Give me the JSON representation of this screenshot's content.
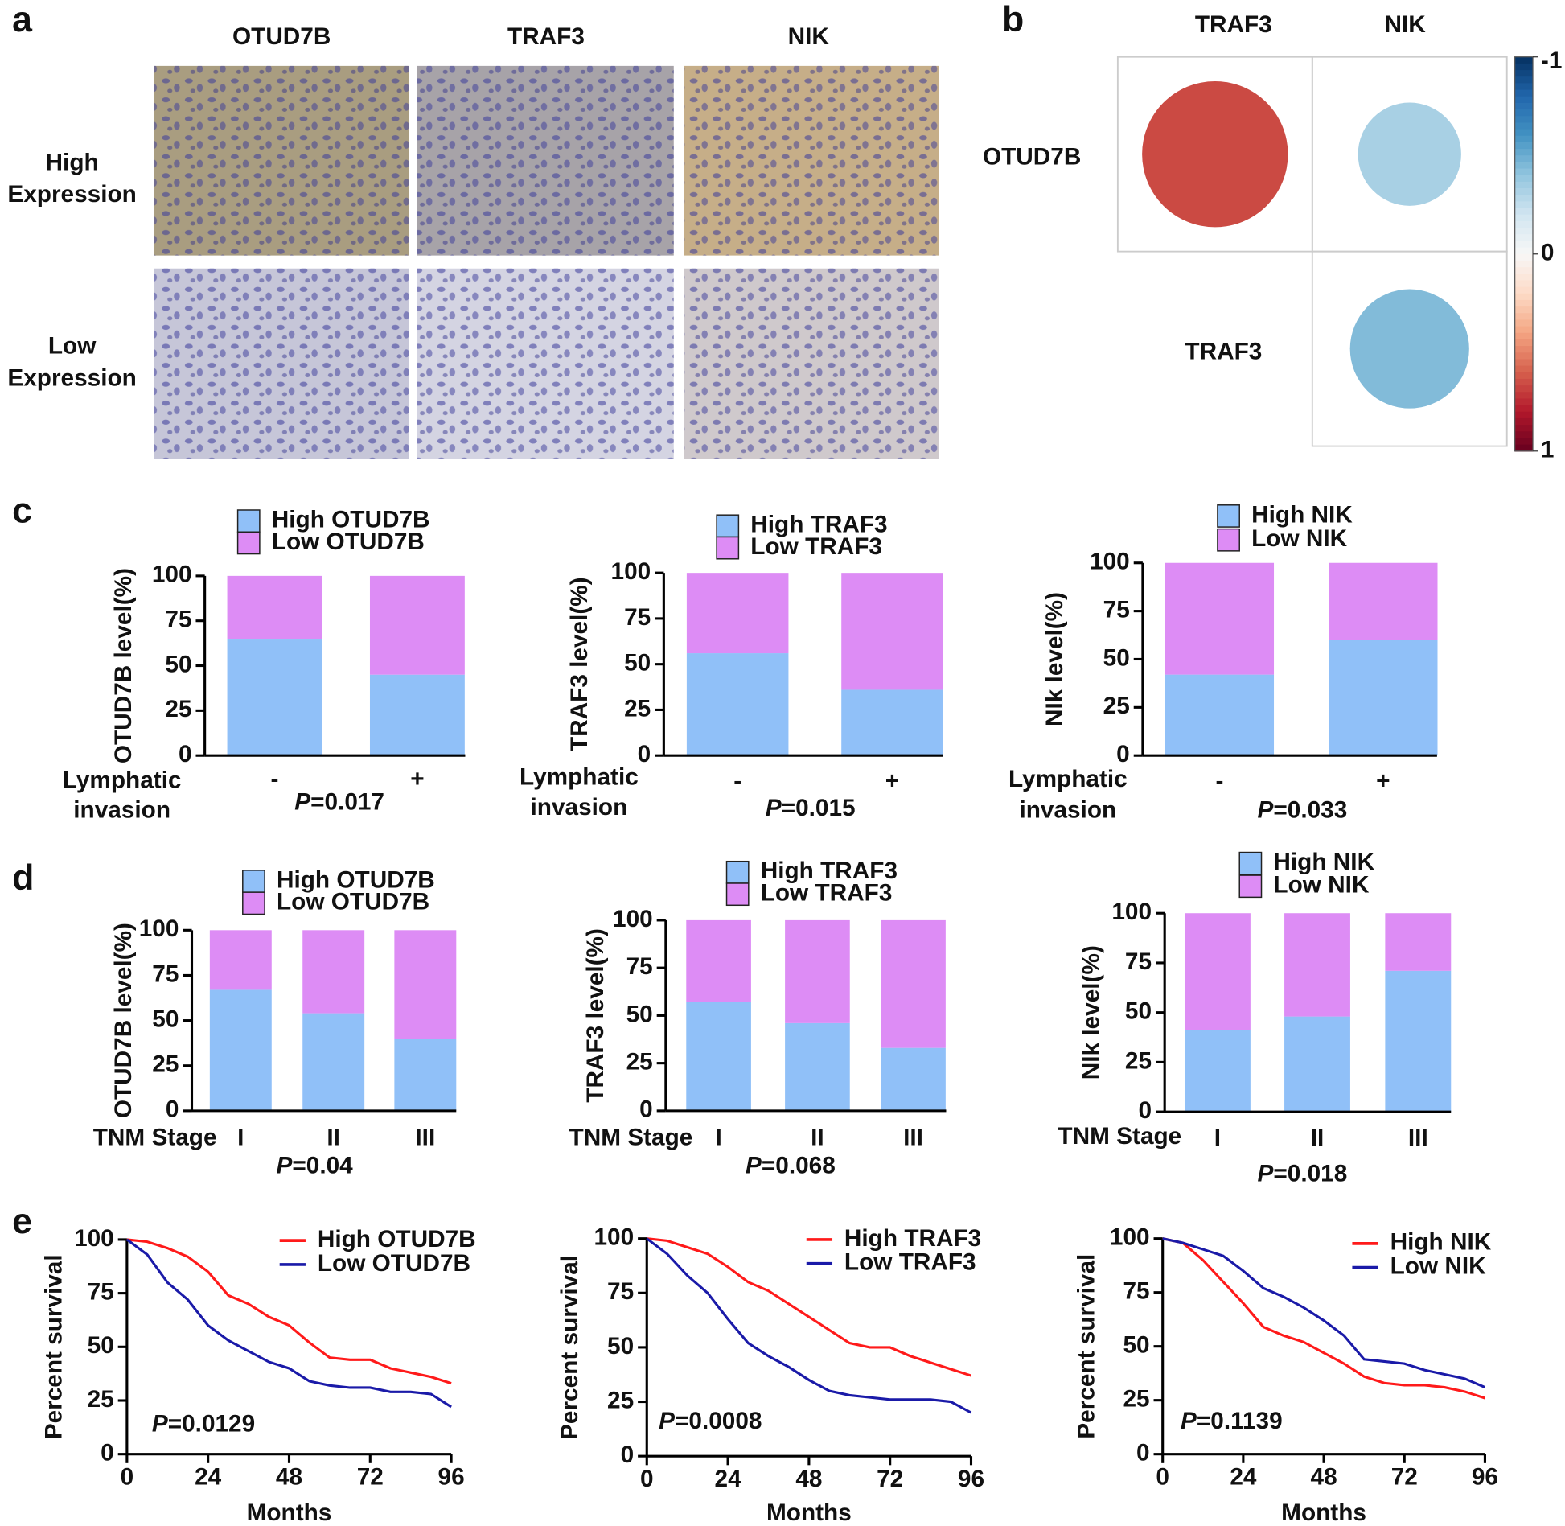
{
  "panel_letters": [
    "a",
    "b",
    "c",
    "d",
    "e"
  ],
  "ihc": {
    "columns": [
      "OTUD7B",
      "TRAF3",
      "NIK"
    ],
    "rows": [
      [
        "High",
        "Expression"
      ],
      [
        "Low",
        "Expression"
      ]
    ]
  },
  "chart_data": [
    {
      "type": "corrplot",
      "columns": [
        "TRAF3",
        "NIK"
      ],
      "rows": [
        "OTUD7B",
        "TRAF3"
      ],
      "values": [
        [
          0.66,
          -0.33
        ],
        [
          null,
          -0.44
        ]
      ],
      "clim": [
        -1,
        1
      ],
      "colorbar_ticks": [
        -1,
        0,
        1
      ],
      "palette": [
        "#053061",
        "#2166ac",
        "#4393c3",
        "#92c5de",
        "#d1e5f0",
        "#f7f7f7",
        "#fddbc7",
        "#f4a582",
        "#d6604d",
        "#b2182b",
        "#67001f"
      ]
    },
    {
      "type": "stacked_bar",
      "ylabel": "OTUD7B level(%)",
      "xlabel": [
        "Lymphatic",
        "invasion"
      ],
      "categories": [
        "-",
        "+"
      ],
      "series": [
        {
          "name": "High OTUD7B",
          "color": "#90c0f8",
          "values": [
            65,
            45
          ]
        },
        {
          "name": "Low OTUD7B",
          "color": "#dd8cf5",
          "values": [
            35,
            55
          ]
        }
      ],
      "ylim": [
        0,
        100
      ],
      "yticks": [
        0,
        25,
        50,
        75,
        100
      ],
      "annotation": "P=0.017"
    },
    {
      "type": "stacked_bar",
      "ylabel": "TRAF3 level(%)",
      "xlabel": [
        "Lymphatic",
        "invasion"
      ],
      "categories": [
        "-",
        "+"
      ],
      "series": [
        {
          "name": "High TRAF3",
          "color": "#90c0f8",
          "values": [
            56,
            36
          ]
        },
        {
          "name": "Low TRAF3",
          "color": "#dd8cf5",
          "values": [
            44,
            64
          ]
        }
      ],
      "ylim": [
        0,
        100
      ],
      "yticks": [
        0,
        25,
        50,
        75,
        100
      ],
      "annotation": "P=0.015"
    },
    {
      "type": "stacked_bar",
      "ylabel": "NIk level(%)",
      "xlabel": [
        "Lymphatic",
        "invasion"
      ],
      "categories": [
        "-",
        "+"
      ],
      "series": [
        {
          "name": "High NIK",
          "color": "#90c0f8",
          "values": [
            42,
            60
          ]
        },
        {
          "name": "Low NIK",
          "color": "#dd8cf5",
          "values": [
            58,
            40
          ]
        }
      ],
      "ylim": [
        0,
        100
      ],
      "yticks": [
        0,
        25,
        50,
        75,
        100
      ],
      "annotation": "P=0.033"
    },
    {
      "type": "stacked_bar",
      "ylabel": "OTUD7B level(%)",
      "xlabel": "TNM Stage",
      "categories": [
        "I",
        "II",
        "III"
      ],
      "series": [
        {
          "name": "High OTUD7B",
          "color": "#90c0f8",
          "values": [
            67,
            54,
            40
          ]
        },
        {
          "name": "Low OTUD7B",
          "color": "#dd8cf5",
          "values": [
            33,
            46,
            60
          ]
        }
      ],
      "ylim": [
        0,
        100
      ],
      "yticks": [
        0,
        25,
        50,
        75,
        100
      ],
      "annotation": "P=0.04"
    },
    {
      "type": "stacked_bar",
      "ylabel": "TRAF3 level(%)",
      "xlabel": "TNM Stage",
      "categories": [
        "I",
        "II",
        "III"
      ],
      "series": [
        {
          "name": "High TRAF3",
          "color": "#90c0f8",
          "values": [
            57,
            46,
            33
          ]
        },
        {
          "name": "Low TRAF3",
          "color": "#dd8cf5",
          "values": [
            43,
            54,
            67
          ]
        }
      ],
      "ylim": [
        0,
        100
      ],
      "yticks": [
        0,
        25,
        50,
        75,
        100
      ],
      "annotation": "P=0.068"
    },
    {
      "type": "stacked_bar",
      "ylabel": "NIk level(%)",
      "xlabel": "TNM Stage",
      "categories": [
        "I",
        "II",
        "III"
      ],
      "series": [
        {
          "name": "High NIK",
          "color": "#90c0f8",
          "values": [
            41,
            48,
            71
          ]
        },
        {
          "name": "Low NIK",
          "color": "#dd8cf5",
          "values": [
            59,
            52,
            29
          ]
        }
      ],
      "ylim": [
        0,
        100
      ],
      "yticks": [
        0,
        25,
        50,
        75,
        100
      ],
      "annotation": "P=0.018"
    },
    {
      "type": "line",
      "x": [
        0,
        6,
        12,
        18,
        24,
        30,
        36,
        42,
        48,
        54,
        60,
        66,
        72,
        78,
        84,
        90,
        96
      ],
      "series": [
        {
          "name": "High OTUD7B",
          "color": "#ff1a1a",
          "values": [
            100,
            99,
            96,
            92,
            85,
            74,
            70,
            64,
            60,
            52,
            45,
            44,
            44,
            40,
            38,
            36,
            33
          ]
        },
        {
          "name": "Low OTUD7B",
          "color": "#1a1aa8",
          "values": [
            100,
            93,
            80,
            72,
            60,
            53,
            48,
            43,
            40,
            34,
            32,
            31,
            31,
            29,
            29,
            28,
            22
          ]
        }
      ],
      "xlim": [
        0,
        96
      ],
      "xticks": [
        0,
        24,
        48,
        72,
        96
      ],
      "ylim": [
        0,
        100
      ],
      "yticks": [
        0,
        25,
        50,
        75,
        100
      ],
      "xlabel": "Months",
      "ylabel": "Percent survival",
      "annotation": "P=0.0129"
    },
    {
      "type": "line",
      "x": [
        0,
        6,
        12,
        18,
        24,
        30,
        36,
        42,
        48,
        54,
        60,
        66,
        72,
        78,
        84,
        90,
        96
      ],
      "series": [
        {
          "name": "High TRAF3",
          "color": "#ff1a1a",
          "values": [
            100,
            99,
            96,
            93,
            87,
            80,
            76,
            70,
            64,
            58,
            52,
            50,
            50,
            46,
            43,
            40,
            37
          ]
        },
        {
          "name": "Low TRAF3",
          "color": "#1a1aa8",
          "values": [
            100,
            93,
            83,
            75,
            63,
            52,
            46,
            41,
            35,
            30,
            28,
            27,
            26,
            26,
            26,
            25,
            20
          ]
        }
      ],
      "xlim": [
        0,
        96
      ],
      "xticks": [
        0,
        24,
        48,
        72,
        96
      ],
      "ylim": [
        0,
        100
      ],
      "yticks": [
        0,
        25,
        50,
        75,
        100
      ],
      "xlabel": "Months",
      "ylabel": "Percent survival",
      "annotation": "P=0.0008"
    },
    {
      "type": "line",
      "x": [
        0,
        6,
        12,
        18,
        24,
        30,
        36,
        42,
        48,
        54,
        60,
        66,
        72,
        78,
        84,
        90,
        96
      ],
      "series": [
        {
          "name": "High NIK",
          "color": "#ff1a1a",
          "values": [
            100,
            98,
            90,
            80,
            70,
            59,
            55,
            52,
            47,
            42,
            36,
            33,
            32,
            32,
            31,
            29,
            26
          ]
        },
        {
          "name": "Low NIK",
          "color": "#1a1aa8",
          "values": [
            100,
            98,
            95,
            92,
            85,
            77,
            73,
            68,
            62,
            55,
            44,
            43,
            42,
            39,
            37,
            35,
            31
          ]
        }
      ],
      "xlim": [
        0,
        96
      ],
      "xticks": [
        0,
        24,
        48,
        72,
        96
      ],
      "ylim": [
        0,
        100
      ],
      "yticks": [
        0,
        25,
        50,
        75,
        100
      ],
      "xlabel": "Months",
      "ylabel": "Percent survival",
      "annotation": "P=0.1139"
    }
  ]
}
